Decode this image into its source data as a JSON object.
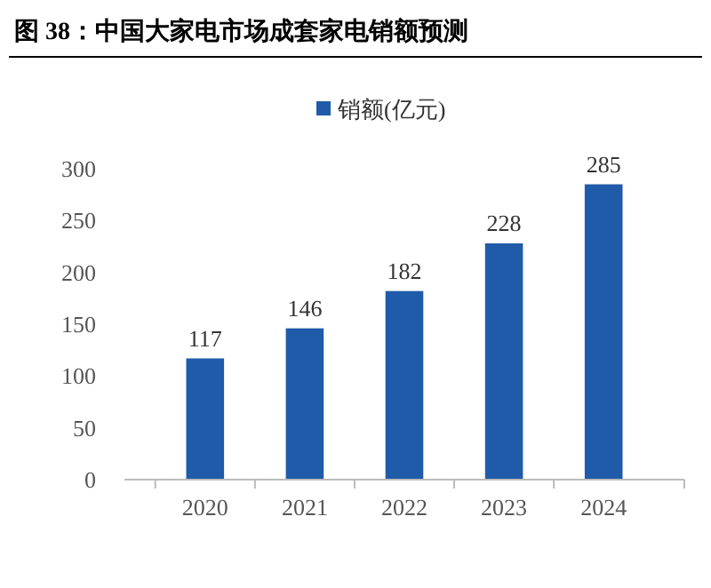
{
  "chart_data": {
    "type": "bar",
    "title": "图 38：中国大家电市场成套家电销额预测",
    "categories": [
      "2020",
      "2021",
      "2022",
      "2023",
      "2024"
    ],
    "series": [
      {
        "name": "销额(亿元)",
        "color": "#1f5ba8",
        "values": [
          117,
          146,
          182,
          228,
          285
        ]
      }
    ],
    "ylim": [
      0,
      300
    ],
    "yticks": [
      0,
      50,
      100,
      150,
      200,
      250,
      300
    ],
    "data_labels": true,
    "legend": "top",
    "grid": false
  }
}
